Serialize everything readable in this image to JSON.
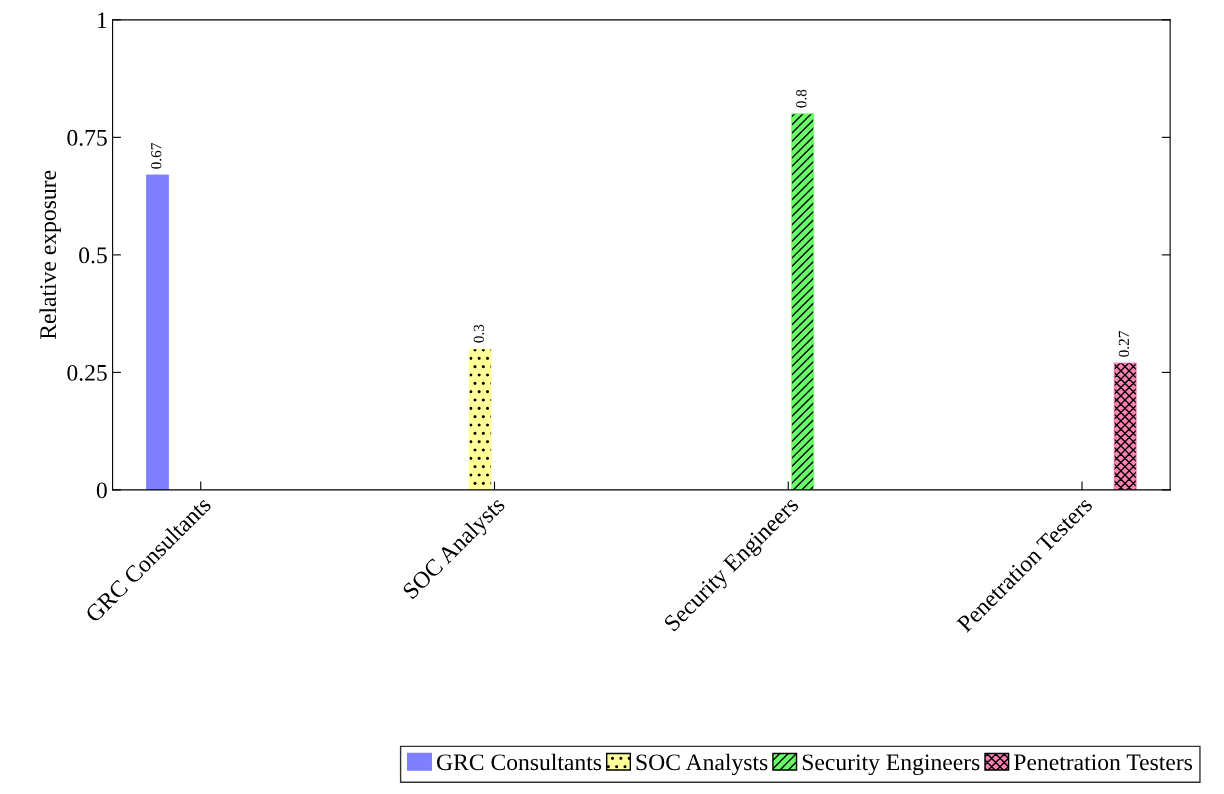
{
  "chart_data": {
    "type": "bar",
    "ylabel": "Relative exposure",
    "categories": [
      "GRC Consultants",
      "SOC Analysts",
      "Security Engineers",
      "Penetration Testers"
    ],
    "series": [
      {
        "name": "GRC Consultants",
        "color": "#8080ff",
        "values": [
          0.67,
          null,
          null,
          null
        ]
      },
      {
        "name": "SOC Analysts",
        "color": "#ffff99",
        "values": [
          null,
          0.3,
          null,
          null
        ]
      },
      {
        "name": "Security Engineers",
        "color": "#66ff66",
        "values": [
          null,
          null,
          0.8,
          null
        ]
      },
      {
        "name": "Penetration Testers",
        "color": "#ff80b3",
        "values": [
          null,
          null,
          null,
          0.27
        ]
      }
    ],
    "ylim": [
      0,
      1
    ],
    "yticks": [
      0,
      0.25,
      0.5,
      0.75,
      1
    ],
    "data_labels": true,
    "legend": "bottom",
    "grid": false
  }
}
